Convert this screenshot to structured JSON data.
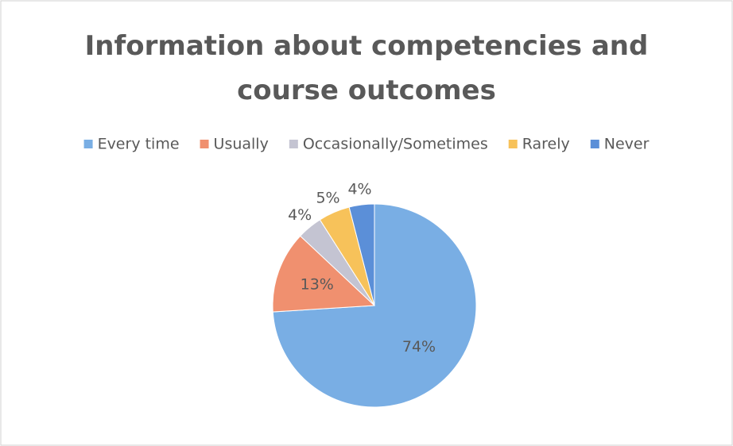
{
  "chart_data": {
    "type": "pie",
    "title": "Information about competencies and course outcomes",
    "categories": [
      "Every time",
      "Usually",
      "Occasionally/Sometimes",
      "Rarely",
      "Never"
    ],
    "values": [
      74,
      13,
      4,
      5,
      4
    ],
    "value_labels": [
      "74%",
      "13%",
      "4%",
      "5%",
      "4%"
    ],
    "colors": [
      "#79aee4",
      "#f0906f",
      "#c4c4d2",
      "#f7c25a",
      "#5b8fd8"
    ],
    "legend": "top"
  }
}
